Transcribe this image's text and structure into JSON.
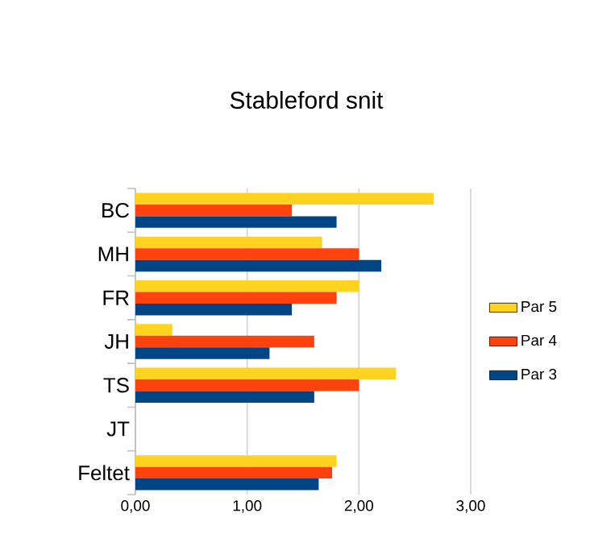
{
  "chart_data": {
    "type": "bar",
    "orientation": "horizontal",
    "title": "Stableford snit",
    "categories": [
      "BC",
      "MH",
      "FR",
      "JH",
      "TS",
      "JT",
      "Feltet"
    ],
    "series": [
      {
        "name": "Par 5",
        "color": "#ffd320",
        "values": [
          2.67,
          1.67,
          2.0,
          0.33,
          2.33,
          null,
          1.8
        ]
      },
      {
        "name": "Par 4",
        "color": "#ff420e",
        "values": [
          1.4,
          2.0,
          1.8,
          1.6,
          2.0,
          null,
          1.76
        ]
      },
      {
        "name": "Par 3",
        "color": "#004586",
        "values": [
          1.8,
          2.2,
          1.4,
          1.2,
          1.6,
          null,
          1.64
        ]
      }
    ],
    "xlim": [
      0,
      3
    ],
    "xticks": [
      {
        "value": 0,
        "label": "0,00"
      },
      {
        "value": 1,
        "label": "1,00"
      },
      {
        "value": 2,
        "label": "2,00"
      },
      {
        "value": 3,
        "label": "3,00"
      }
    ],
    "grid": "x",
    "legend": "right"
  }
}
